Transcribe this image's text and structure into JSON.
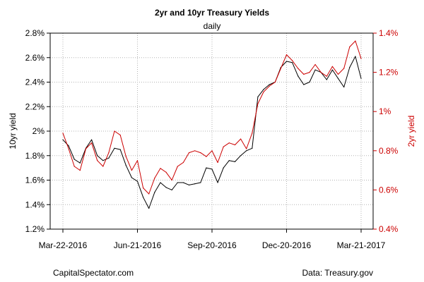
{
  "chart_data": {
    "type": "line",
    "title": "2yr and 10yr Treasury Yields",
    "subtitle": "daily",
    "ylabel_left": "10yr yield",
    "ylabel_right": "2yr yield",
    "ylim_left": [
      1.2,
      2.8
    ],
    "ylim_right": [
      0.4,
      1.4
    ],
    "yticks_left": [
      "1.2%",
      "1.4%",
      "1.6%",
      "1.8%",
      "2%",
      "2.2%",
      "2.4%",
      "2.6%",
      "2.8%"
    ],
    "yticks_right": [
      "0.4%",
      "0.6%",
      "0.8%",
      "1%",
      "1.2%",
      "1.4%"
    ],
    "xticks": [
      "Mar-22-2016",
      "Jun-21-2016",
      "Sep-20-2016",
      "Dec-20-2016",
      "Mar-21-2017"
    ],
    "xtick_dates": [
      "2016-03-22",
      "2016-06-21",
      "2016-09-20",
      "2016-12-20",
      "2017-03-21"
    ],
    "grid": true,
    "colors": {
      "ten_year": "#000000",
      "two_year": "#cc0000",
      "right_axis": "#cc0000"
    },
    "series": [
      {
        "axis": "left",
        "x": [
          "2016-03-22",
          "2016-03-29",
          "2016-04-05",
          "2016-04-12",
          "2016-04-19",
          "2016-04-26",
          "2016-05-03",
          "2016-05-10",
          "2016-05-17",
          "2016-05-24",
          "2016-05-31",
          "2016-06-07",
          "2016-06-14",
          "2016-06-21",
          "2016-06-28",
          "2016-07-05",
          "2016-07-12",
          "2016-07-19",
          "2016-07-26",
          "2016-08-02",
          "2016-08-09",
          "2016-08-16",
          "2016-08-23",
          "2016-08-30",
          "2016-09-06",
          "2016-09-13",
          "2016-09-20",
          "2016-09-27",
          "2016-10-04",
          "2016-10-11",
          "2016-10-18",
          "2016-10-25",
          "2016-11-01",
          "2016-11-08",
          "2016-11-15",
          "2016-11-22",
          "2016-11-29",
          "2016-12-06",
          "2016-12-13",
          "2016-12-20",
          "2016-12-27",
          "2017-01-03",
          "2017-01-10",
          "2017-01-17",
          "2017-01-24",
          "2017-01-31",
          "2017-02-07",
          "2017-02-14",
          "2017-02-21",
          "2017-02-28",
          "2017-03-07",
          "2017-03-14",
          "2017-03-21"
        ],
        "values": [
          1.93,
          1.88,
          1.77,
          1.74,
          1.86,
          1.93,
          1.8,
          1.76,
          1.78,
          1.86,
          1.85,
          1.72,
          1.62,
          1.59,
          1.46,
          1.37,
          1.5,
          1.58,
          1.54,
          1.52,
          1.58,
          1.58,
          1.56,
          1.57,
          1.58,
          1.7,
          1.69,
          1.58,
          1.7,
          1.76,
          1.75,
          1.8,
          1.84,
          1.86,
          2.28,
          2.34,
          2.38,
          2.4,
          2.52,
          2.57,
          2.56,
          2.45,
          2.38,
          2.4,
          2.5,
          2.48,
          2.42,
          2.5,
          2.43,
          2.36,
          2.52,
          2.61,
          2.43
        ]
      },
      {
        "axis": "right",
        "x": [
          "2016-03-22",
          "2016-03-29",
          "2016-04-05",
          "2016-04-12",
          "2016-04-19",
          "2016-04-26",
          "2016-05-03",
          "2016-05-10",
          "2016-05-17",
          "2016-05-24",
          "2016-05-31",
          "2016-06-07",
          "2016-06-14",
          "2016-06-21",
          "2016-06-28",
          "2016-07-05",
          "2016-07-12",
          "2016-07-19",
          "2016-07-26",
          "2016-08-02",
          "2016-08-09",
          "2016-08-16",
          "2016-08-23",
          "2016-08-30",
          "2016-09-06",
          "2016-09-13",
          "2016-09-20",
          "2016-09-27",
          "2016-10-04",
          "2016-10-11",
          "2016-10-18",
          "2016-10-25",
          "2016-11-01",
          "2016-11-08",
          "2016-11-15",
          "2016-11-22",
          "2016-11-29",
          "2016-12-06",
          "2016-12-13",
          "2016-12-20",
          "2016-12-27",
          "2017-01-03",
          "2017-01-10",
          "2017-01-17",
          "2017-01-24",
          "2017-01-31",
          "2017-02-07",
          "2017-02-14",
          "2017-02-21",
          "2017-02-28",
          "2017-03-07",
          "2017-03-14",
          "2017-03-21"
        ],
        "values": [
          0.89,
          0.81,
          0.72,
          0.7,
          0.81,
          0.84,
          0.75,
          0.72,
          0.79,
          0.9,
          0.88,
          0.77,
          0.7,
          0.75,
          0.61,
          0.58,
          0.66,
          0.71,
          0.69,
          0.65,
          0.72,
          0.74,
          0.79,
          0.8,
          0.79,
          0.77,
          0.8,
          0.74,
          0.82,
          0.84,
          0.83,
          0.86,
          0.81,
          0.89,
          1.04,
          1.1,
          1.13,
          1.15,
          1.22,
          1.29,
          1.26,
          1.22,
          1.19,
          1.2,
          1.24,
          1.2,
          1.18,
          1.23,
          1.19,
          1.22,
          1.33,
          1.36,
          1.27
        ]
      }
    ]
  },
  "footer": {
    "left": "CapitalSpectator.com",
    "right": "Data: Treasury.gov"
  }
}
